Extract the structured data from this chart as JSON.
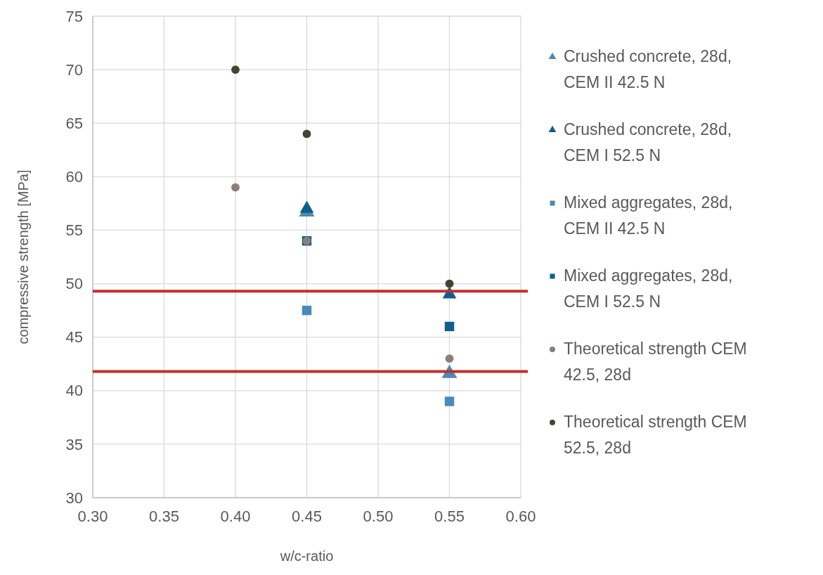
{
  "chart_data": {
    "type": "scatter",
    "xlabel": "w/c-ratio",
    "ylabel": "compressive strength [MPa]",
    "xlim": [
      0.3,
      0.6
    ],
    "xticks": [
      {
        "value": 0.3,
        "label": "0.30"
      },
      {
        "value": 0.35,
        "label": "0.35"
      },
      {
        "value": 0.4,
        "label": "0.40"
      },
      {
        "value": 0.45,
        "label": "0.45"
      },
      {
        "value": 0.5,
        "label": "0.50"
      },
      {
        "value": 0.55,
        "label": "0.55"
      },
      {
        "value": 0.6,
        "label": "0.60"
      }
    ],
    "ylim": [
      30,
      75
    ],
    "yticks": [
      30,
      35,
      40,
      45,
      50,
      55,
      60,
      65,
      70,
      75
    ],
    "grid": true,
    "legend": "right",
    "series": [
      {
        "name": "Crushed concrete, 28d, CEM II 42.5 N",
        "color": "#4a8ab8",
        "marker": "triangle",
        "x": [
          0.45,
          0.55
        ],
        "values": [
          56.7,
          41.6
        ]
      },
      {
        "name": "Crushed concrete, 28d, CEM I 52.5 N",
        "color": "#0e5f8e",
        "marker": "triangle",
        "x": [
          0.45,
          0.55
        ],
        "values": [
          57,
          49
        ]
      },
      {
        "name": "Mixed aggregates, 28d, CEM II 42.5 N",
        "color": "#4a8ab8",
        "marker": "square",
        "x": [
          0.45,
          0.55
        ],
        "values": [
          47.5,
          39
        ]
      },
      {
        "name": "Mixed aggregates, 28d, CEM I 52.5 N",
        "color": "#0e5f8e",
        "marker": "square",
        "x": [
          0.45,
          0.55
        ],
        "values": [
          54,
          46
        ]
      },
      {
        "name": "Theoretical strength CEM 42.5, 28d",
        "color": "#8a7f78",
        "marker": "circle",
        "x": [
          0.4,
          0.45,
          0.55
        ],
        "values": [
          59,
          54,
          43
        ]
      },
      {
        "name": "Theoretical strength CEM 52.5, 28d",
        "color": "#45432f",
        "marker": "circle",
        "x": [
          0.4,
          0.45,
          0.55
        ],
        "values": [
          70,
          64,
          50
        ]
      }
    ],
    "ref_lines": [
      {
        "axis": "y",
        "value": 49.3,
        "color": "#c0302a"
      },
      {
        "axis": "y",
        "value": 41.8,
        "color": "#c0302a"
      }
    ]
  }
}
